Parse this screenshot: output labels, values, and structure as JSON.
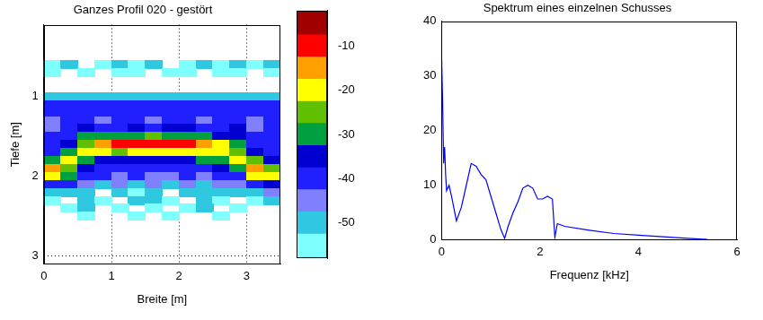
{
  "chart_data": [
    {
      "type": "heatmap",
      "title": "Ganzes Profil 020 - gestört",
      "x_label": "Breite [m]",
      "y_label": "Tiefe [m]",
      "xlim": [
        0,
        3.5
      ],
      "xticks": [
        0,
        1,
        2,
        3
      ],
      "ylim": [
        0.1,
        3.1
      ],
      "yticks": [
        1,
        2,
        3
      ],
      "grid": true,
      "x": [
        0.125,
        0.375,
        0.625,
        0.875,
        1.125,
        1.375,
        1.625,
        1.875,
        2.125,
        2.375,
        2.625,
        2.875,
        3.125,
        3.375
      ],
      "y": [
        0.5,
        0.6,
        0.7,
        0.8,
        0.9,
        1.0,
        1.1,
        1.2,
        1.3,
        1.4,
        1.5,
        1.6,
        1.7,
        1.8,
        1.9,
        2.0,
        2.1,
        2.2,
        2.3,
        2.4,
        2.5,
        2.6,
        2.7,
        2.8,
        2.9,
        3.0
      ],
      "cells": [
        [
          null,
          null,
          null,
          null,
          null,
          null,
          null,
          null,
          null,
          null,
          null,
          null,
          null,
          null
        ],
        [
          -53,
          -52,
          null,
          -53,
          -52,
          -53,
          -52,
          null,
          -53,
          -52,
          -53,
          -52,
          -53,
          -52
        ],
        [
          -54,
          null,
          -53,
          null,
          -54,
          -53,
          null,
          -54,
          -53,
          null,
          -54,
          -53,
          null,
          -54
        ],
        [
          null,
          null,
          null,
          null,
          null,
          null,
          null,
          null,
          null,
          null,
          null,
          null,
          null,
          null
        ],
        [
          null,
          null,
          null,
          null,
          null,
          null,
          null,
          null,
          null,
          null,
          null,
          null,
          null,
          null
        ],
        [
          -50,
          -50,
          -50,
          -50,
          -50,
          -50,
          -50,
          -50,
          -50,
          -50,
          -50,
          -50,
          -50,
          -50
        ],
        [
          -40,
          -41,
          -40,
          -39,
          -40,
          -41,
          -40,
          -39,
          -40,
          -41,
          -40,
          -39,
          -40,
          -41
        ],
        [
          -39,
          -40,
          -38,
          -40,
          -39,
          -38,
          -40,
          -39,
          -38,
          -40,
          -39,
          -38,
          -40,
          -39
        ],
        [
          -44,
          -40,
          -38,
          -43,
          -39,
          -40,
          -44,
          -38,
          -40,
          -43,
          -39,
          -38,
          -44,
          -40
        ],
        [
          -43,
          -39,
          -36,
          -42,
          -38,
          -36,
          -40,
          -37,
          -36,
          -41,
          -38,
          -37,
          -43,
          -41
        ],
        [
          -42,
          -38,
          -32,
          -30,
          -28,
          -28,
          -27,
          -28,
          -29,
          -30,
          -33,
          -37,
          -41,
          -42
        ],
        [
          -40,
          -36,
          -25,
          -15,
          -12,
          -8,
          -10,
          -9,
          -12,
          -14,
          -22,
          -32,
          -38,
          -41
        ],
        [
          -38,
          -30,
          -20,
          -22,
          -25,
          -20,
          -22,
          -18,
          -22,
          -20,
          -18,
          -25,
          -33,
          -39
        ],
        [
          -30,
          -22,
          -28,
          -33,
          -35,
          -34,
          -36,
          -33,
          -35,
          -32,
          -28,
          -20,
          -25,
          -35
        ],
        [
          -15,
          -25,
          -35,
          -38,
          -40,
          -38,
          -40,
          -39,
          -38,
          -40,
          -36,
          -30,
          -15,
          -25
        ],
        [
          -20,
          -30,
          -38,
          -42,
          -44,
          -42,
          -45,
          -43,
          -42,
          -44,
          -40,
          -38,
          -22,
          -18
        ],
        [
          -38,
          -42,
          -45,
          -48,
          -46,
          -50,
          -47,
          -48,
          -46,
          -49,
          -47,
          -44,
          -40,
          -36
        ],
        [
          -50,
          -52,
          -48,
          null,
          -50,
          -53,
          -49,
          null,
          -51,
          -50,
          -48,
          -52,
          -50,
          -46
        ],
        [
          -53,
          null,
          -50,
          -54,
          null,
          -52,
          -51,
          -54,
          null,
          -51,
          -53,
          null,
          -54,
          -52
        ],
        [
          null,
          -54,
          -52,
          null,
          -54,
          null,
          -53,
          null,
          -54,
          -52,
          null,
          -54,
          null,
          null
        ],
        [
          null,
          null,
          -54,
          null,
          null,
          -54,
          null,
          -55,
          null,
          null,
          -55,
          null,
          null,
          null
        ],
        [
          null,
          null,
          null,
          null,
          null,
          null,
          null,
          null,
          null,
          null,
          null,
          null,
          null,
          null
        ],
        [
          null,
          null,
          null,
          null,
          null,
          null,
          null,
          null,
          null,
          null,
          null,
          null,
          null,
          null
        ],
        [
          null,
          null,
          null,
          null,
          null,
          null,
          null,
          null,
          null,
          null,
          null,
          null,
          null,
          null
        ],
        [
          null,
          null,
          null,
          null,
          null,
          null,
          null,
          null,
          null,
          null,
          null,
          null,
          null,
          null
        ],
        [
          null,
          null,
          null,
          null,
          null,
          null,
          null,
          null,
          null,
          null,
          null,
          null,
          null,
          null
        ]
      ],
      "colorbar": {
        "range": [
          -58,
          -2
        ],
        "ticks": [
          -50,
          -40,
          -30,
          -20,
          -10
        ],
        "edges": [
          -58,
          -52.5,
          -47.5,
          -42.5,
          -37.5,
          -32.5,
          -27.5,
          -22.5,
          -17.5,
          -12.5,
          -7.5,
          -2
        ],
        "colors": [
          "#80ffff",
          "#30c8e0",
          "#8080ff",
          "#2020ff",
          "#0000d0",
          "#00a040",
          "#60c000",
          "#ffff00",
          "#ffa000",
          "#ff0000",
          "#a00000"
        ]
      }
    },
    {
      "type": "line",
      "title": "Spektrum eines einzelnen Schusses",
      "x_label": "Frequenz [kHz]",
      "xlim": [
        0,
        6
      ],
      "xticks": [
        0,
        2,
        4,
        6
      ],
      "ylim": [
        0,
        40
      ],
      "yticks": [
        0,
        10,
        20,
        30,
        40
      ],
      "grid": false,
      "x": [
        0,
        0.02,
        0.04,
        0.06,
        0.08,
        0.1,
        0.15,
        0.2,
        0.3,
        0.4,
        0.5,
        0.6,
        0.7,
        0.8,
        0.9,
        1.0,
        1.1,
        1.2,
        1.28,
        1.35,
        1.45,
        1.55,
        1.65,
        1.75,
        1.85,
        1.95,
        2.05,
        2.15,
        2.25,
        2.3,
        2.35,
        2.5,
        3.0,
        3.5,
        4.0,
        4.5,
        5.0,
        5.4
      ],
      "series": [
        {
          "color": "#0000ff",
          "values": [
            33,
            25,
            14,
            17,
            12,
            9,
            10,
            8,
            3.5,
            6,
            10,
            14,
            13.5,
            12,
            11,
            8,
            5,
            2,
            0.3,
            2.5,
            5,
            7,
            9.5,
            10,
            9.5,
            7.5,
            7.5,
            8,
            7.5,
            0.5,
            3,
            2.5,
            1.8,
            1.2,
            0.9,
            0.6,
            0.3,
            0.1
          ]
        }
      ]
    }
  ]
}
